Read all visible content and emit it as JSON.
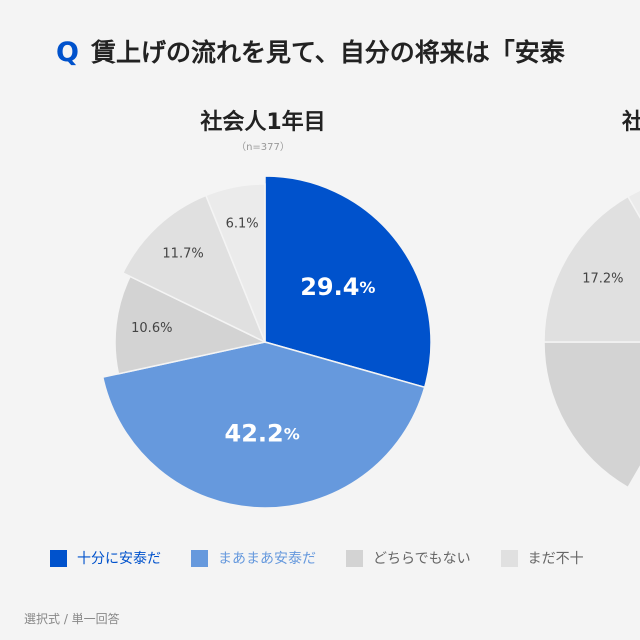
{
  "question": {
    "mark": "Q",
    "text": "賃上げの流れを見て、自分の将来は「安泰"
  },
  "chart_data": [
    {
      "type": "pie",
      "title": "社会人1年目",
      "n_label": "（n=377）",
      "slices": [
        {
          "label": "十分に安泰だ",
          "value": 29.4,
          "color": "#0052cc",
          "text_color": "#ffffff",
          "big": true
        },
        {
          "label": "まあまあ安泰だ",
          "value": 42.2,
          "color": "#6699dd",
          "text_color": "#ffffff",
          "big": true
        },
        {
          "label": "どちらでもない",
          "value": 10.6,
          "color": "#d3d3d3",
          "text_color": "#444444",
          "big": false
        },
        {
          "label": "まだ不十分",
          "value": 11.7,
          "color": "#e0e0e0",
          "text_color": "#444444",
          "big": false
        },
        {
          "label": "",
          "value": 6.1,
          "color": "#ebebeb",
          "text_color": "#444444",
          "big": false
        }
      ]
    },
    {
      "type": "pie",
      "title": "社",
      "slices": [
        {
          "label": "どちらでもない",
          "value": null,
          "color": "#d3d3d3"
        },
        {
          "label": "まだ不十分",
          "value": 17.2,
          "color": "#e0e0e0",
          "text_color": "#444444"
        },
        {
          "label": "",
          "value": null,
          "color": "#ebebeb"
        }
      ]
    }
  ],
  "legend": [
    {
      "label": "十分に安泰だ",
      "color": "#0052cc"
    },
    {
      "label": "まあまあ安泰だ",
      "color": "#6699dd"
    },
    {
      "label": "どちらでもない",
      "color": "#d3d3d3"
    },
    {
      "label": "まだ不十",
      "color": "#e0e0e0"
    }
  ],
  "footnote": "選択式 / 単一回答"
}
